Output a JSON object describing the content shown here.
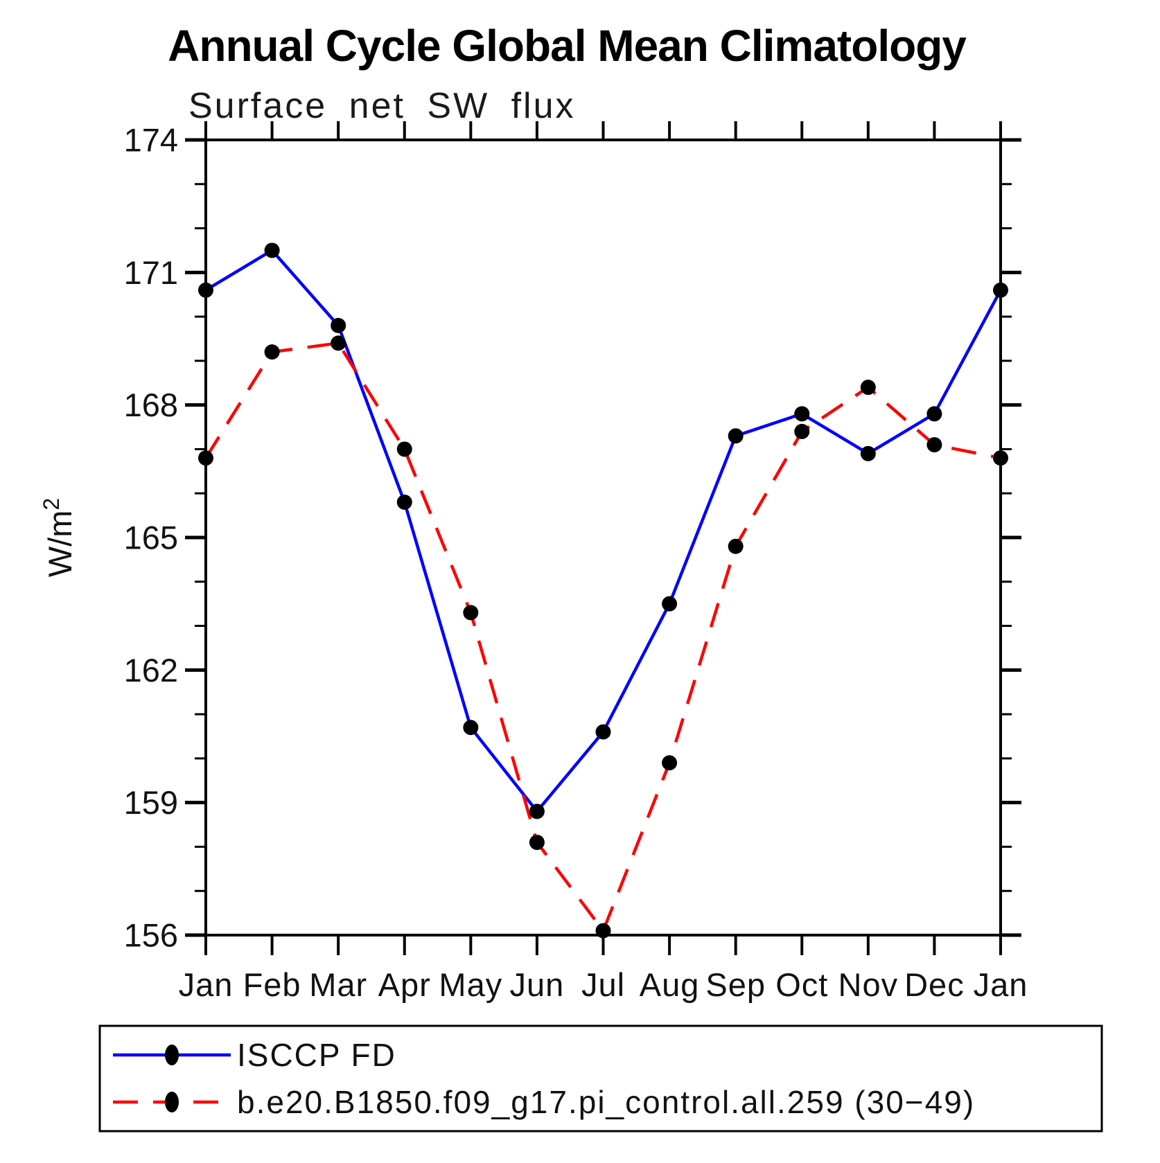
{
  "title": "Annual Cycle Global Mean Climatology",
  "subtitle": "Surface net SW flux",
  "chart_data": {
    "type": "line",
    "categories": [
      "Jan",
      "Feb",
      "Mar",
      "Apr",
      "May",
      "Jun",
      "Jul",
      "Aug",
      "Sep",
      "Oct",
      "Nov",
      "Dec",
      "Jan"
    ],
    "ylabel": {
      "base": "W/m",
      "sup": "2"
    },
    "ylim": [
      156,
      174
    ],
    "ytick_major": [
      156,
      159,
      162,
      165,
      168,
      171,
      174
    ],
    "ytick_minor_step": 1,
    "grid": false,
    "legend_position": "bottom",
    "marker_color": "#000000",
    "axis_color": "#000000",
    "series": [
      {
        "name": "ISCCP FD",
        "color": "#0000ff",
        "style": "solid",
        "values": [
          170.6,
          171.5,
          169.8,
          165.8,
          160.7,
          158.8,
          160.6,
          163.5,
          167.3,
          167.8,
          166.9,
          167.8,
          170.6
        ]
      },
      {
        "name": "b.e20.B1850.f09_g17.pi_control.all.259 (30−49)",
        "color": "#ff0000",
        "style": "dashed",
        "values": [
          166.8,
          169.2,
          169.4,
          167.0,
          163.3,
          158.1,
          156.1,
          159.9,
          164.8,
          167.4,
          168.4,
          167.1,
          166.8
        ]
      }
    ]
  }
}
